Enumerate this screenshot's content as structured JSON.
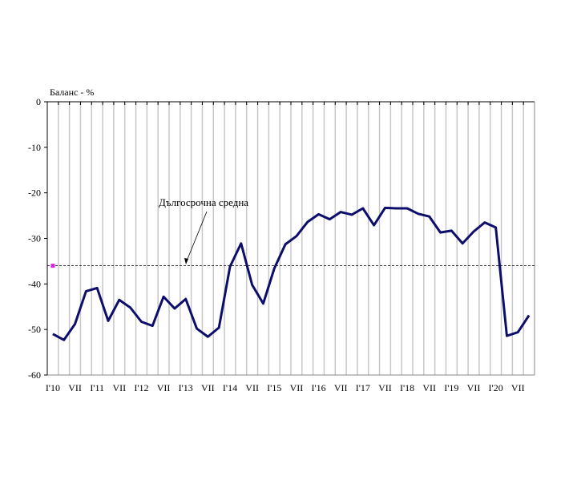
{
  "chart_data": {
    "type": "line",
    "ylabel": "Баланс - %",
    "ylim": [
      -60,
      0
    ],
    "yticks": [
      0,
      -10,
      -20,
      -30,
      -40,
      -50,
      -60
    ],
    "xtick_labels": [
      "I'10",
      "VII",
      "I'11",
      "VII",
      "I'12",
      "VII",
      "I'13",
      "VII",
      "I'14",
      "VII",
      "I'15",
      "VII",
      "I'16",
      "VII",
      "I'17",
      "VII",
      "I'18",
      "VII",
      "I'19",
      "VII",
      "I'20",
      "VII"
    ],
    "x": [
      "2010Q1",
      "2010Q2",
      "2010Q3",
      "2010Q4",
      "2011Q1",
      "2011Q2",
      "2011Q3",
      "2011Q4",
      "2012Q1",
      "2012Q2",
      "2012Q3",
      "2012Q4",
      "2013Q1",
      "2013Q2",
      "2013Q3",
      "2013Q4",
      "2014Q1",
      "2014Q2",
      "2014Q3",
      "2014Q4",
      "2015Q1",
      "2015Q2",
      "2015Q3",
      "2015Q4",
      "2016Q1",
      "2016Q2",
      "2016Q3",
      "2016Q4",
      "2017Q1",
      "2017Q2",
      "2017Q3",
      "2017Q4",
      "2018Q1",
      "2018Q2",
      "2018Q3",
      "2018Q4",
      "2019Q1",
      "2019Q2",
      "2019Q3",
      "2019Q4",
      "2020Q1",
      "2020Q2",
      "2020Q3",
      "2020Q4"
    ],
    "series": [
      {
        "name": "Баланс",
        "color": "#0d0d6b",
        "values": [
          -51.0,
          -52.3,
          -48.8,
          -41.6,
          -40.9,
          -48.1,
          -43.5,
          -45.2,
          -48.3,
          -49.2,
          -42.8,
          -45.4,
          -43.3,
          -49.8,
          -51.6,
          -49.6,
          -36.2,
          -31.1,
          -40.2,
          -44.3,
          -36.6,
          -31.3,
          -29.5,
          -26.4,
          -24.7,
          -25.8,
          -24.2,
          -24.8,
          -23.4,
          -27.1,
          -23.3,
          -23.4,
          -23.4,
          -24.6,
          -25.2,
          -28.7,
          -28.3,
          -31.1,
          -28.5,
          -26.5,
          -27.6,
          -51.4,
          -50.6,
          -46.9
        ]
      }
    ],
    "reference_line": {
      "label": "Дългосрочна средна",
      "value": -36,
      "marker_color": "#e020e0"
    },
    "grid": "vertical"
  }
}
